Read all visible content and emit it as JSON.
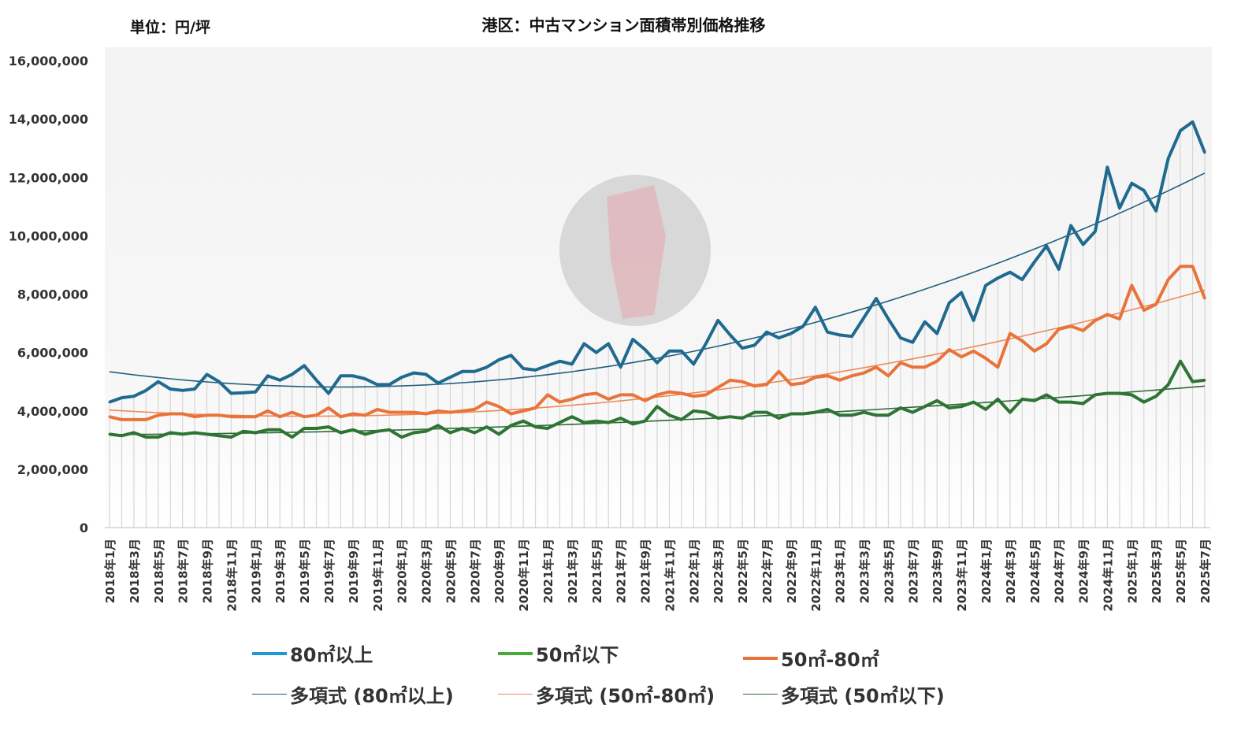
{
  "chart_data": {
    "type": "line",
    "title": "港区：中古マンション面積帯別価格推移",
    "unit_label": "単位：円/坪",
    "xlabel": "",
    "ylabel": "",
    "ylim": [
      0,
      16000000
    ],
    "yticks": [
      0,
      2000000,
      4000000,
      6000000,
      8000000,
      10000000,
      12000000,
      14000000,
      16000000
    ],
    "ytick_labels": [
      "0",
      "2,000,000",
      "4,000,000",
      "6,000,000",
      "8,000,000",
      "10,000,000",
      "12,000,000",
      "14,000,000",
      "16,000,000"
    ],
    "x_start": {
      "year": 2018,
      "month": 1
    },
    "x_end": {
      "year": 2025,
      "month": 7
    },
    "x_label_every": 2,
    "value_scale": 1000000,
    "series": [
      {
        "name": "80㎡以上",
        "color": "#1f6a8e",
        "legend_color": "#2196d3",
        "values": [
          4.3,
          4.45,
          4.5,
          4.7,
          5.0,
          4.75,
          4.7,
          4.75,
          5.25,
          5.0,
          4.6,
          4.62,
          4.65,
          5.2,
          5.05,
          5.25,
          5.55,
          5.05,
          4.6,
          5.2,
          5.2,
          5.1,
          4.9,
          4.9,
          5.15,
          5.3,
          5.25,
          4.95,
          5.15,
          5.35,
          5.35,
          5.5,
          5.75,
          5.9,
          5.45,
          5.4,
          5.55,
          5.7,
          5.6,
          6.3,
          6.0,
          6.3,
          5.5,
          6.45,
          6.1,
          5.65,
          6.05,
          6.05,
          5.6,
          6.3,
          7.1,
          6.6,
          6.15,
          6.25,
          6.7,
          6.5,
          6.65,
          6.9,
          7.55,
          6.7,
          6.6,
          6.55,
          7.2,
          7.85,
          7.15,
          6.5,
          6.35,
          7.05,
          6.65,
          7.7,
          8.05,
          7.1,
          8.3,
          8.55,
          8.75,
          8.5,
          9.1,
          9.65,
          8.85,
          10.35,
          9.7,
          10.15,
          12.35,
          10.95,
          11.8,
          11.55,
          10.85,
          12.65,
          13.6,
          13.9,
          12.85
        ]
      },
      {
        "name": "50㎡以下",
        "color": "#2e7434",
        "legend_color": "#4aa83a",
        "values": [
          3.2,
          3.15,
          3.25,
          3.1,
          3.1,
          3.25,
          3.2,
          3.25,
          3.2,
          3.15,
          3.1,
          3.3,
          3.25,
          3.35,
          3.35,
          3.1,
          3.4,
          3.4,
          3.45,
          3.25,
          3.35,
          3.2,
          3.3,
          3.35,
          3.1,
          3.25,
          3.3,
          3.5,
          3.25,
          3.4,
          3.25,
          3.45,
          3.2,
          3.5,
          3.65,
          3.45,
          3.4,
          3.6,
          3.8,
          3.6,
          3.65,
          3.6,
          3.75,
          3.55,
          3.65,
          4.15,
          3.85,
          3.7,
          4.0,
          3.95,
          3.75,
          3.8,
          3.75,
          3.95,
          3.95,
          3.75,
          3.9,
          3.9,
          3.95,
          4.05,
          3.85,
          3.85,
          3.95,
          3.85,
          3.85,
          4.1,
          3.95,
          4.15,
          4.35,
          4.1,
          4.15,
          4.3,
          4.05,
          4.4,
          3.95,
          4.4,
          4.35,
          4.55,
          4.3,
          4.3,
          4.25,
          4.55,
          4.6,
          4.6,
          4.55,
          4.3,
          4.5,
          4.9,
          5.7,
          5.0,
          5.05
        ]
      },
      {
        "name": "50㎡-80㎡",
        "color": "#e8743b",
        "legend_color": "#e8743b",
        "values": [
          3.8,
          3.7,
          3.7,
          3.7,
          3.85,
          3.9,
          3.9,
          3.8,
          3.85,
          3.85,
          3.8,
          3.8,
          3.8,
          4.0,
          3.8,
          3.95,
          3.8,
          3.85,
          4.1,
          3.8,
          3.9,
          3.85,
          4.05,
          3.95,
          3.95,
          3.95,
          3.9,
          4.0,
          3.95,
          4.0,
          4.05,
          4.3,
          4.15,
          3.9,
          4.0,
          4.1,
          4.55,
          4.3,
          4.4,
          4.55,
          4.6,
          4.4,
          4.55,
          4.55,
          4.35,
          4.55,
          4.65,
          4.6,
          4.5,
          4.55,
          4.8,
          5.05,
          5.0,
          4.85,
          4.9,
          5.35,
          4.9,
          4.95,
          5.15,
          5.2,
          5.05,
          5.2,
          5.3,
          5.5,
          5.2,
          5.65,
          5.5,
          5.5,
          5.7,
          6.1,
          5.85,
          6.05,
          5.8,
          5.5,
          6.65,
          6.4,
          6.05,
          6.3,
          6.8,
          6.9,
          6.75,
          7.1,
          7.3,
          7.15,
          8.3,
          7.45,
          7.65,
          8.5,
          8.95,
          8.95,
          7.85
        ]
      }
    ],
    "trendlines": [
      {
        "name": "多項式 (80㎡以上)",
        "of": 0,
        "type": "polynomial",
        "order": 2,
        "color": "#1f5f7e"
      },
      {
        "name": "多項式 (50㎡-80㎡)",
        "of": 2,
        "type": "polynomial",
        "order": 2,
        "color": "#ee8a58"
      },
      {
        "name": "多項式 (50㎡以下)",
        "of": 1,
        "type": "polynomial",
        "order": 2,
        "color": "#2e6b34"
      }
    ],
    "legend_placement": "bottom"
  }
}
